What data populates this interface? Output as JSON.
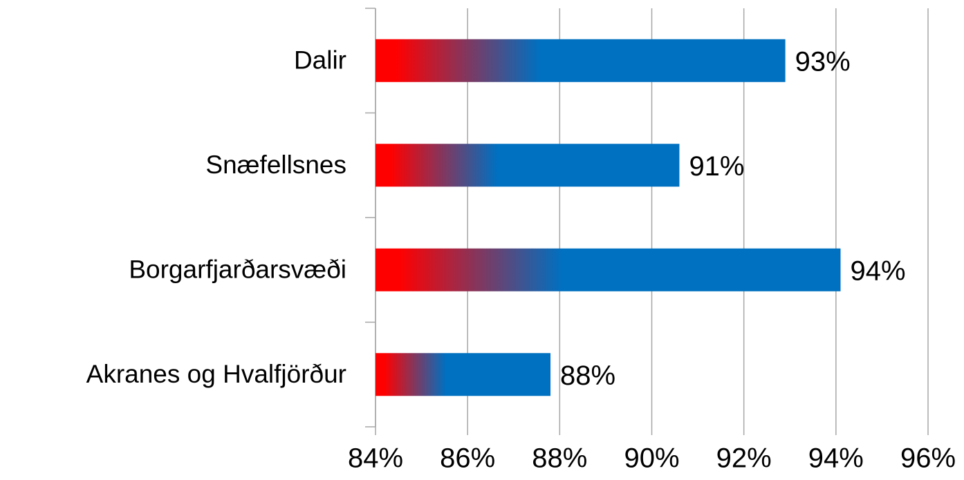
{
  "chart_data": {
    "type": "barh",
    "categories": [
      "Dalir",
      "Snæfellsnes",
      "Borgarfjarðarsvæði",
      "Akranes og Hvalfjörður"
    ],
    "values": [
      92.9,
      90.6,
      94.1,
      87.8
    ],
    "value_labels": [
      "93%",
      "91%",
      "94%",
      "88%"
    ],
    "color": "#0070c0",
    "gradient_start_color": "#ff0000",
    "xlim": [
      84,
      96
    ],
    "xticks": [
      {
        "value": 84,
        "label": "84%"
      },
      {
        "value": 86,
        "label": "86%"
      },
      {
        "value": 88,
        "label": "88%"
      },
      {
        "value": 90,
        "label": "90%"
      },
      {
        "value": 92,
        "label": "92%"
      },
      {
        "value": 94,
        "label": "94%"
      },
      {
        "value": 96,
        "label": "96%"
      }
    ],
    "grid": true
  }
}
